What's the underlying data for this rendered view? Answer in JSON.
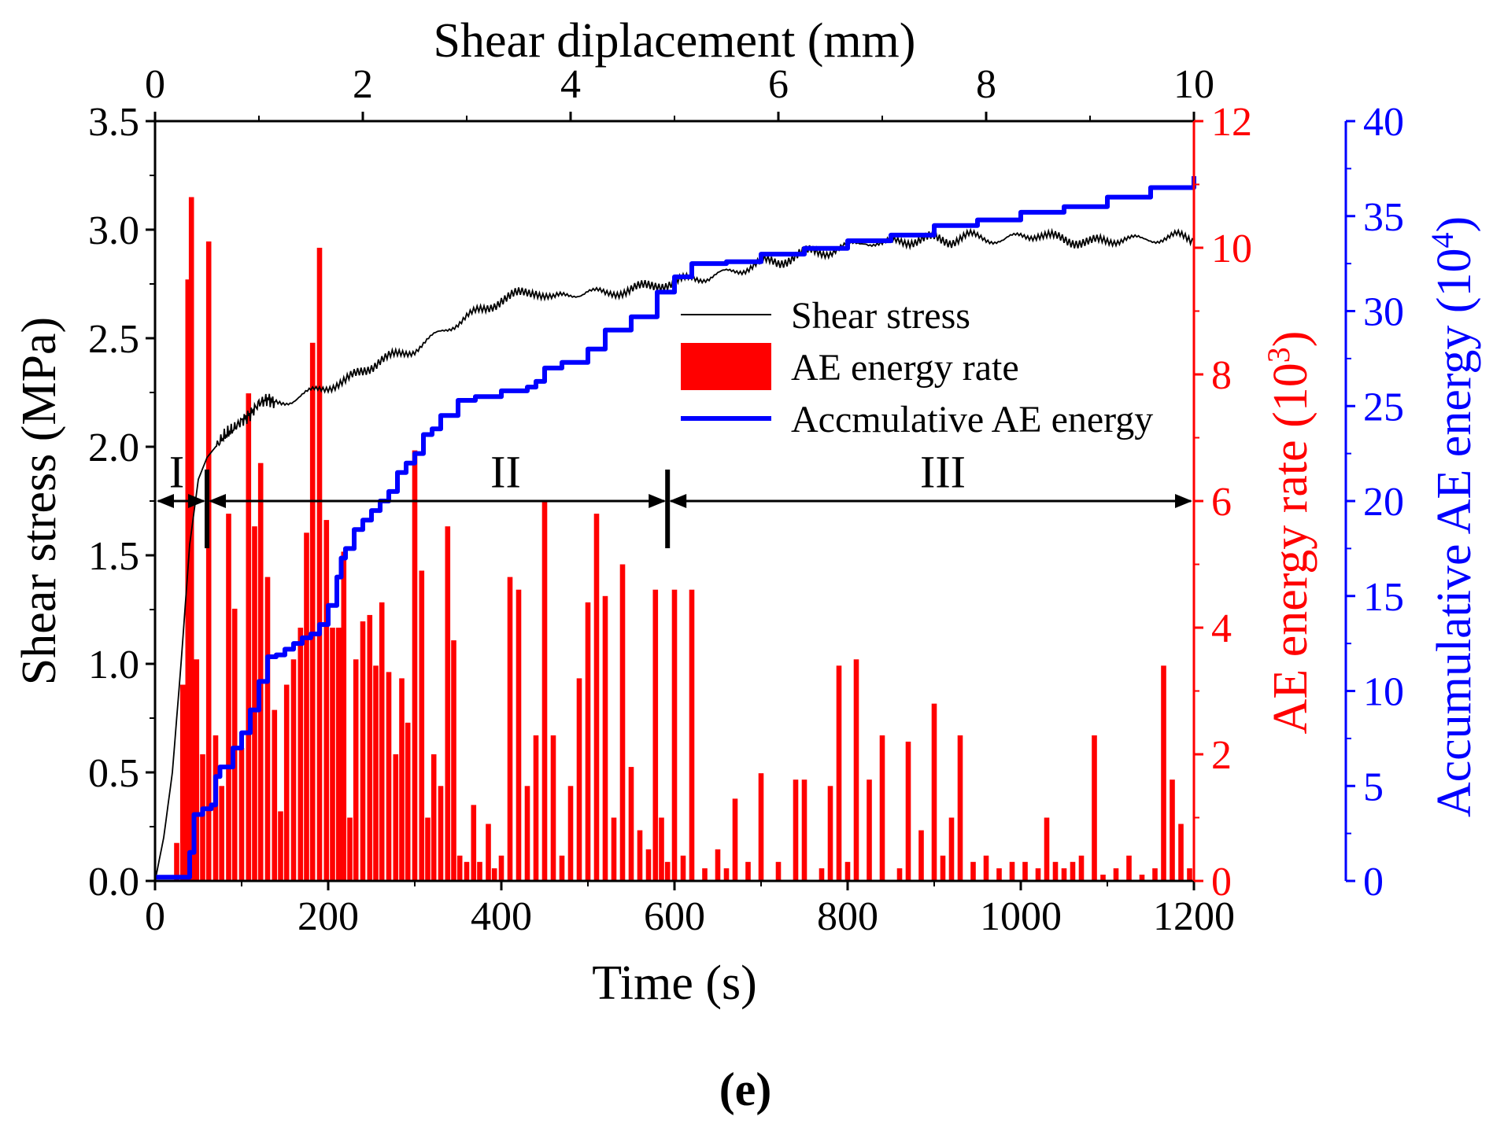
{
  "panel_label": "(e)",
  "chart_data": {
    "type": "bar+line",
    "top_axis": {
      "title": "Shear diplacement (mm)",
      "range": [
        0,
        10
      ],
      "ticks": [
        0,
        2,
        4,
        6,
        8,
        10
      ],
      "tick_labels": [
        "0",
        "2",
        "4",
        "6",
        "8",
        "10"
      ]
    },
    "x_axis": {
      "title": "Time (s)",
      "range": [
        0,
        1200
      ],
      "ticks": [
        0,
        200,
        400,
        600,
        800,
        1000,
        1200
      ],
      "tick_labels": [
        "0",
        "200",
        "400",
        "600",
        "800",
        "1000",
        "1200"
      ]
    },
    "y_left": {
      "title": "Shear stress (MPa)",
      "range": [
        0,
        3.5
      ],
      "ticks": [
        0,
        0.5,
        1.0,
        1.5,
        2.0,
        2.5,
        3.0,
        3.5
      ],
      "tick_labels": [
        "0.0",
        "0.5",
        "1.0",
        "1.5",
        "2.0",
        "2.5",
        "3.0",
        "3.5"
      ],
      "color": "#000000"
    },
    "y_right1": {
      "title_main": "AE energy rate (10",
      "title_sup": "3",
      "title_end": ")",
      "range": [
        0,
        12
      ],
      "ticks": [
        0,
        2,
        4,
        6,
        8,
        10,
        12
      ],
      "tick_labels": [
        "0",
        "2",
        "4",
        "6",
        "8",
        "10",
        "12"
      ],
      "color": "#ff0000"
    },
    "y_right2": {
      "title_main": "Accumulative AE energy  (10",
      "title_sup": "4",
      "title_end": ")",
      "range": [
        0,
        40
      ],
      "ticks": [
        0,
        5,
        10,
        15,
        20,
        25,
        30,
        35,
        40
      ],
      "tick_labels": [
        "0",
        "5",
        "10",
        "15",
        "20",
        "25",
        "30",
        "35",
        "40"
      ],
      "color": "#0000ff"
    },
    "legend": {
      "placement": "upper-center-right",
      "entries": [
        {
          "label": "Shear stress",
          "color": "#000000",
          "kind": "thin-line"
        },
        {
          "label": "AE energy rate",
          "color": "#ff0000",
          "kind": "bar"
        },
        {
          "label": "Accmulative  AE energy",
          "color": "#0000ff",
          "kind": "thick-line"
        }
      ]
    },
    "regions": {
      "arrow_y_mpa": 1.75,
      "boundaries_s": [
        60,
        592
      ],
      "labels": [
        {
          "text": "I",
          "x_s": 25,
          "y_mpa": 1.9
        },
        {
          "text": "II",
          "x_s": 405,
          "y_mpa": 1.9
        },
        {
          "text": "III",
          "x_s": 910,
          "y_mpa": 1.9
        }
      ]
    },
    "series": [
      {
        "name": "Shear stress",
        "axis": "y_left",
        "color": "#000000",
        "x": [
          0,
          10,
          20,
          30,
          40,
          50,
          60,
          70,
          80,
          90,
          100,
          110,
          120,
          130,
          140,
          160,
          180,
          200,
          220,
          240,
          260,
          280,
          300,
          320,
          340,
          360,
          380,
          400,
          420,
          440,
          460,
          480,
          500,
          520,
          540,
          560,
          580,
          600,
          620,
          640,
          660,
          680,
          700,
          720,
          740,
          760,
          780,
          800,
          820,
          840,
          860,
          880,
          900,
          920,
          940,
          960,
          980,
          1000,
          1020,
          1040,
          1060,
          1080,
          1100,
          1120,
          1140,
          1160,
          1180,
          1200
        ],
        "values": [
          0.0,
          0.2,
          0.5,
          1.0,
          1.55,
          1.85,
          1.95,
          2.0,
          2.05,
          2.08,
          2.12,
          2.15,
          2.2,
          2.22,
          2.2,
          2.22,
          2.25,
          2.28,
          2.3,
          2.35,
          2.4,
          2.42,
          2.45,
          2.5,
          2.55,
          2.6,
          2.63,
          2.68,
          2.7,
          2.72,
          2.68,
          2.7,
          2.72,
          2.7,
          2.72,
          2.73,
          2.75,
          2.75,
          2.78,
          2.78,
          2.8,
          2.82,
          2.85,
          2.85,
          2.88,
          2.9,
          2.9,
          2.92,
          2.95,
          2.93,
          2.95,
          2.95,
          2.96,
          2.95,
          2.97,
          2.96,
          2.95,
          2.97,
          2.98,
          2.96,
          2.95,
          2.94,
          2.95,
          2.96,
          2.95,
          2.96,
          2.97,
          2.95
        ]
      },
      {
        "name": "Accmulative  AE energy",
        "axis": "y_right2",
        "color": "#0000ff",
        "x": [
          0,
          30,
          40,
          45,
          55,
          65,
          70,
          75,
          90,
          100,
          110,
          120,
          130,
          140,
          150,
          160,
          170,
          180,
          190,
          200,
          210,
          215,
          220,
          230,
          240,
          250,
          260,
          270,
          280,
          290,
          300,
          310,
          320,
          330,
          350,
          370,
          400,
          430,
          440,
          450,
          470,
          500,
          520,
          550,
          580,
          600,
          620,
          660,
          700,
          750,
          800,
          850,
          900,
          950,
          1000,
          1050,
          1100,
          1150,
          1200
        ],
        "values": [
          0.2,
          0.2,
          1.5,
          3.5,
          3.8,
          4.0,
          5.5,
          6.0,
          7.0,
          7.8,
          9.0,
          10.5,
          11.8,
          11.9,
          12.2,
          12.5,
          12.8,
          13.0,
          13.5,
          14.5,
          16.0,
          17.0,
          17.5,
          18.5,
          19.0,
          19.5,
          20.0,
          20.5,
          21.5,
          22.0,
          22.5,
          23.5,
          23.8,
          24.5,
          25.3,
          25.5,
          25.8,
          26.0,
          26.3,
          27.0,
          27.3,
          28.0,
          29.0,
          29.7,
          31.0,
          31.8,
          32.5,
          32.6,
          33.0,
          33.3,
          33.7,
          34.0,
          34.5,
          34.8,
          35.2,
          35.5,
          36.0,
          36.5,
          37.1
        ]
      },
      {
        "name": "AE energy rate",
        "axis": "y_right1",
        "color": "#ff0000",
        "bar_width_s": 6,
        "x": [
          25,
          32,
          38,
          42,
          48,
          55,
          62,
          70,
          77,
          85,
          92,
          100,
          108,
          115,
          122,
          130,
          138,
          145,
          152,
          160,
          168,
          175,
          182,
          190,
          198,
          205,
          212,
          218,
          225,
          232,
          240,
          248,
          255,
          262,
          270,
          278,
          285,
          292,
          300,
          308,
          315,
          322,
          330,
          338,
          345,
          352,
          360,
          368,
          375,
          385,
          392,
          400,
          410,
          420,
          430,
          440,
          450,
          460,
          470,
          480,
          490,
          500,
          510,
          520,
          530,
          540,
          550,
          560,
          570,
          578,
          585,
          592,
          600,
          610,
          620,
          635,
          650,
          660,
          670,
          685,
          700,
          720,
          740,
          750,
          770,
          780,
          790,
          800,
          810,
          825,
          840,
          860,
          870,
          885,
          900,
          910,
          920,
          930,
          945,
          960,
          975,
          990,
          1005,
          1020,
          1030,
          1040,
          1050,
          1060,
          1070,
          1085,
          1095,
          1110,
          1125,
          1140,
          1155,
          1165,
          1175,
          1185,
          1195
        ],
        "values": [
          0.6,
          3.1,
          9.5,
          10.8,
          3.5,
          2.0,
          10.1,
          2.3,
          1.5,
          5.8,
          4.3,
          2.1,
          7.7,
          5.6,
          6.6,
          4.8,
          2.7,
          1.1,
          3.1,
          3.5,
          4.0,
          5.5,
          8.5,
          10.0,
          5.7,
          4.0,
          4.0,
          5.2,
          1.0,
          3.5,
          4.1,
          4.2,
          3.4,
          4.4,
          3.3,
          2.0,
          3.2,
          2.5,
          6.8,
          4.9,
          1.0,
          2.0,
          1.5,
          5.6,
          3.8,
          0.4,
          0.3,
          1.2,
          0.3,
          0.9,
          0.2,
          0.4,
          4.8,
          4.6,
          1.5,
          2.3,
          6.0,
          2.3,
          0.4,
          1.5,
          3.2,
          4.4,
          5.8,
          4.5,
          1.0,
          5.0,
          1.8,
          0.8,
          0.5,
          4.6,
          1.0,
          0.3,
          4.6,
          0.4,
          4.6,
          0.2,
          0.5,
          0.2,
          1.3,
          0.3,
          1.7,
          0.3,
          1.6,
          1.6,
          0.2,
          1.5,
          3.4,
          0.3,
          3.5,
          1.6,
          2.3,
          0.2,
          2.2,
          0.8,
          2.8,
          0.4,
          1.0,
          2.3,
          0.3,
          0.4,
          0.2,
          0.3,
          0.3,
          0.2,
          1.0,
          0.3,
          0.2,
          0.3,
          0.4,
          2.3,
          0.1,
          0.2,
          0.4,
          0.1,
          0.2,
          3.4,
          1.6,
          0.9,
          0.2
        ]
      }
    ]
  }
}
